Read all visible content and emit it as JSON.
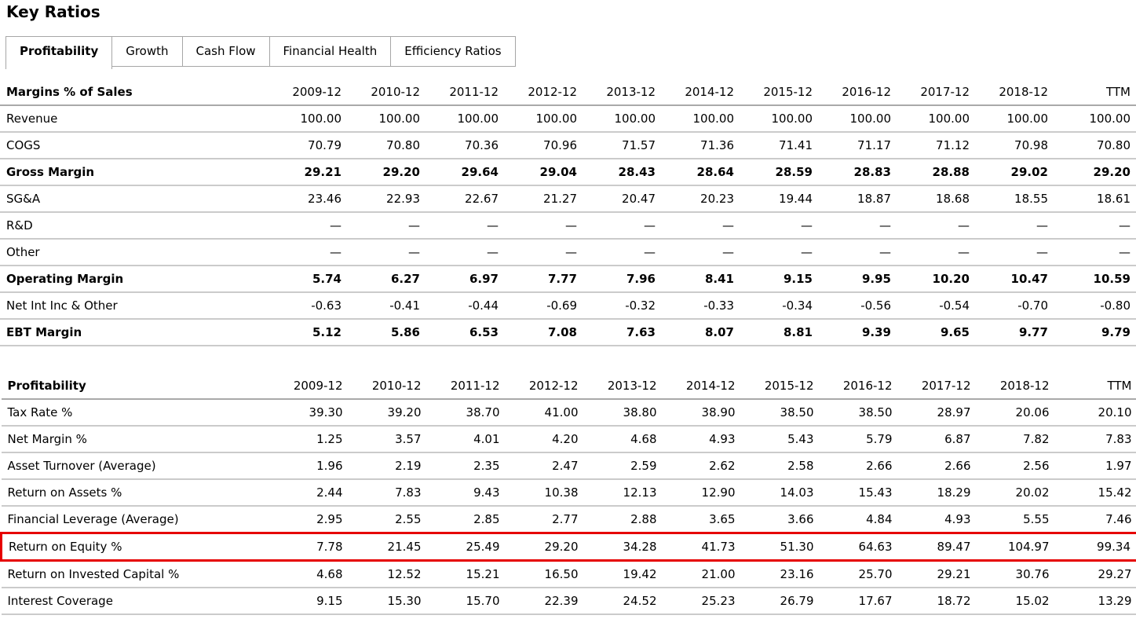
{
  "page_title": "Key Ratios",
  "highlight_color": "#e60000",
  "tabs": [
    {
      "label": "Profitability",
      "active": true
    },
    {
      "label": "Growth",
      "active": false
    },
    {
      "label": "Cash Flow",
      "active": false
    },
    {
      "label": "Financial Health",
      "active": false
    },
    {
      "label": "Efficiency Ratios",
      "active": false
    }
  ],
  "columns": [
    "2009-12",
    "2010-12",
    "2011-12",
    "2012-12",
    "2013-12",
    "2014-12",
    "2015-12",
    "2016-12",
    "2017-12",
    "2018-12",
    "TTM"
  ],
  "tables": [
    {
      "name": "Margins % of Sales",
      "rows": [
        {
          "label": "Revenue",
          "values": [
            "100.00",
            "100.00",
            "100.00",
            "100.00",
            "100.00",
            "100.00",
            "100.00",
            "100.00",
            "100.00",
            "100.00",
            "100.00"
          ]
        },
        {
          "label": "COGS",
          "values": [
            "70.79",
            "70.80",
            "70.36",
            "70.96",
            "71.57",
            "71.36",
            "71.41",
            "71.17",
            "71.12",
            "70.98",
            "70.80"
          ]
        },
        {
          "label": "Gross Margin",
          "bold": true,
          "values": [
            "29.21",
            "29.20",
            "29.64",
            "29.04",
            "28.43",
            "28.64",
            "28.59",
            "28.83",
            "28.88",
            "29.02",
            "29.20"
          ]
        },
        {
          "label": "SG&A",
          "values": [
            "23.46",
            "22.93",
            "22.67",
            "21.27",
            "20.47",
            "20.23",
            "19.44",
            "18.87",
            "18.68",
            "18.55",
            "18.61"
          ]
        },
        {
          "label": "R&D",
          "values": [
            "—",
            "—",
            "—",
            "—",
            "—",
            "—",
            "—",
            "—",
            "—",
            "—",
            "—"
          ]
        },
        {
          "label": "Other",
          "values": [
            "—",
            "—",
            "—",
            "—",
            "—",
            "—",
            "—",
            "—",
            "—",
            "—",
            "—"
          ]
        },
        {
          "label": "Operating Margin",
          "bold": true,
          "values": [
            "5.74",
            "6.27",
            "6.97",
            "7.77",
            "7.96",
            "8.41",
            "9.15",
            "9.95",
            "10.20",
            "10.47",
            "10.59"
          ]
        },
        {
          "label": "Net Int Inc & Other",
          "values": [
            "-0.63",
            "-0.41",
            "-0.44",
            "-0.69",
            "-0.32",
            "-0.33",
            "-0.34",
            "-0.56",
            "-0.54",
            "-0.70",
            "-0.80"
          ]
        },
        {
          "label": "EBT Margin",
          "bold": true,
          "values": [
            "5.12",
            "5.86",
            "6.53",
            "7.08",
            "7.63",
            "8.07",
            "8.81",
            "9.39",
            "9.65",
            "9.77",
            "9.79"
          ]
        }
      ]
    },
    {
      "name": "Profitability",
      "rows": [
        {
          "label": "Tax Rate %",
          "values": [
            "39.30",
            "39.20",
            "38.70",
            "41.00",
            "38.80",
            "38.90",
            "38.50",
            "38.50",
            "28.97",
            "20.06",
            "20.10"
          ]
        },
        {
          "label": "Net Margin %",
          "values": [
            "1.25",
            "3.57",
            "4.01",
            "4.20",
            "4.68",
            "4.93",
            "5.43",
            "5.79",
            "6.87",
            "7.82",
            "7.83"
          ]
        },
        {
          "label": "Asset Turnover (Average)",
          "values": [
            "1.96",
            "2.19",
            "2.35",
            "2.47",
            "2.59",
            "2.62",
            "2.58",
            "2.66",
            "2.66",
            "2.56",
            "1.97"
          ]
        },
        {
          "label": "Return on Assets %",
          "values": [
            "2.44",
            "7.83",
            "9.43",
            "10.38",
            "12.13",
            "12.90",
            "14.03",
            "15.43",
            "18.29",
            "20.02",
            "15.42"
          ]
        },
        {
          "label": "Financial Leverage (Average)",
          "values": [
            "2.95",
            "2.55",
            "2.85",
            "2.77",
            "2.88",
            "3.65",
            "3.66",
            "4.84",
            "4.93",
            "5.55",
            "7.46"
          ]
        },
        {
          "label": "Return on Equity %",
          "highlight": true,
          "values": [
            "7.78",
            "21.45",
            "25.49",
            "29.20",
            "34.28",
            "41.73",
            "51.30",
            "64.63",
            "89.47",
            "104.97",
            "99.34"
          ]
        },
        {
          "label": "Return on Invested Capital %",
          "values": [
            "4.68",
            "12.52",
            "15.21",
            "16.50",
            "19.42",
            "21.00",
            "23.16",
            "25.70",
            "29.21",
            "30.76",
            "29.27"
          ]
        },
        {
          "label": "Interest Coverage",
          "values": [
            "9.15",
            "15.30",
            "15.70",
            "22.39",
            "24.52",
            "25.23",
            "26.79",
            "17.67",
            "18.72",
            "15.02",
            "13.29"
          ]
        }
      ]
    }
  ]
}
